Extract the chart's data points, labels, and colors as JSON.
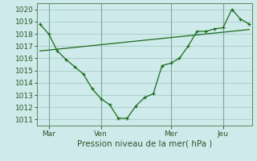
{
  "title": "",
  "xlabel": "Pression niveau de la mer( hPa )",
  "ylim": [
    1010.5,
    1020.5
  ],
  "yticks": [
    1011,
    1012,
    1013,
    1014,
    1015,
    1016,
    1017,
    1018,
    1019,
    1020
  ],
  "background_color": "#ceeaea",
  "grid_color": "#a8cccc",
  "line_color": "#1a6b1a",
  "xtick_positions": [
    1,
    7,
    15,
    21
  ],
  "xtick_labels": [
    "Mar",
    "Ven",
    "Mer",
    "Jeu"
  ],
  "series1_x": [
    0,
    1,
    2,
    3,
    4,
    5,
    6,
    7,
    8,
    9,
    10,
    11,
    12,
    13,
    14,
    15,
    16,
    17,
    18,
    19,
    20,
    21,
    22,
    23,
    24
  ],
  "series1_y": [
    1018.8,
    1018.0,
    1016.6,
    1015.9,
    1015.3,
    1014.7,
    1013.5,
    1012.7,
    1012.2,
    1011.1,
    1011.1,
    1012.1,
    1012.8,
    1013.1,
    1015.4,
    1015.6,
    1016.0,
    1017.0,
    1018.2,
    1018.2,
    1018.4,
    1018.5,
    1020.0,
    1019.2,
    1018.8
  ],
  "series2_x": [
    0,
    24
  ],
  "series2_y": [
    1016.6,
    1018.35
  ],
  "n_points": 25,
  "xlim": [
    -0.3,
    24.3
  ]
}
